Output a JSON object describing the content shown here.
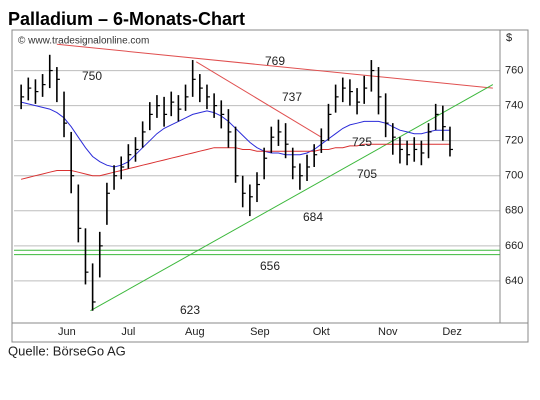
{
  "chart_data": {
    "type": "ohlc",
    "title": "Palladium – 6-Monats-Chart",
    "watermark": "© www.tradesignalonline.com",
    "y_label": "$",
    "source": "Quelle: BörseGo AG",
    "xlim": [
      -1,
      67
    ],
    "xticks": [
      {
        "value": 6.4,
        "label": "Jun"
      },
      {
        "value": 15,
        "label": "Jul"
      },
      {
        "value": 24.3,
        "label": "Aug"
      },
      {
        "value": 33.4,
        "label": "Sep"
      },
      {
        "value": 42,
        "label": "Okt"
      },
      {
        "value": 51.3,
        "label": "Nov"
      },
      {
        "value": 60.3,
        "label": "Dez"
      }
    ],
    "ylim": [
      616,
      782
    ],
    "yticks": [
      640,
      660,
      680,
      700,
      720,
      740,
      760
    ],
    "grid": true,
    "color": "#000000",
    "high": [
      752,
      756,
      755,
      758,
      769,
      762,
      748,
      725,
      695,
      670,
      650,
      668,
      696,
      706,
      711,
      718,
      722,
      731,
      742,
      746,
      745,
      748,
      746,
      752,
      766,
      758,
      752,
      747,
      743,
      738,
      728,
      700,
      695,
      702,
      716,
      728,
      732,
      730,
      716,
      707,
      712,
      718,
      727,
      741,
      752,
      756,
      755,
      750,
      757,
      766,
      762,
      747,
      730,
      722,
      720,
      722,
      720,
      730,
      741,
      740,
      728
    ],
    "low": [
      738,
      743,
      741,
      745,
      750,
      742,
      722,
      690,
      662,
      638,
      623,
      642,
      672,
      692,
      698,
      704,
      708,
      716,
      726,
      733,
      728,
      734,
      731,
      737,
      745,
      742,
      738,
      733,
      727,
      716,
      696,
      682,
      677,
      685,
      698,
      713,
      717,
      710,
      698,
      692,
      697,
      705,
      713,
      720,
      736,
      742,
      740,
      735,
      741,
      748,
      735,
      722,
      712,
      707,
      706,
      708,
      706,
      710,
      726,
      720,
      711
    ],
    "close": [
      745,
      750,
      748,
      752,
      760,
      755,
      730,
      700,
      670,
      645,
      628,
      660,
      690,
      700,
      705,
      712,
      715,
      725,
      735,
      740,
      735,
      742,
      738,
      745,
      755,
      750,
      745,
      740,
      735,
      725,
      700,
      690,
      688,
      695,
      710,
      722,
      725,
      718,
      705,
      700,
      705,
      712,
      720,
      735,
      745,
      750,
      748,
      742,
      750,
      760,
      745,
      730,
      722,
      715,
      712,
      715,
      713,
      725,
      735,
      728,
      715
    ],
    "series": [
      {
        "color": "#2b2bd9",
        "values": [
          742,
          741,
          740,
          739,
          738,
          736,
          733,
          728,
          722,
          716,
          711,
          708,
          706,
          705,
          706,
          708,
          712,
          716,
          720,
          724,
          727,
          729,
          731,
          733,
          735,
          736,
          737,
          736,
          734,
          731,
          727,
          723,
          719,
          716,
          714,
          713,
          713,
          712,
          712,
          712,
          713,
          715,
          718,
          721,
          724,
          727,
          729,
          730,
          731,
          731,
          731,
          730,
          728,
          726,
          725,
          724,
          724,
          725,
          726,
          726,
          726
        ]
      },
      {
        "color": "#d93030",
        "values": [
          698,
          699,
          700,
          701,
          702,
          703,
          703,
          703,
          702,
          701,
          700,
          700,
          701,
          702,
          703,
          704,
          705,
          706,
          707,
          708,
          709,
          710,
          711,
          712,
          713,
          714,
          715,
          716,
          716,
          716,
          716,
          715,
          715,
          714,
          714,
          714,
          714,
          714,
          714,
          714,
          714,
          714,
          715,
          715,
          716,
          716,
          717,
          717,
          718,
          718,
          718,
          718,
          718,
          718,
          718,
          718,
          718,
          718,
          718,
          718,
          718
        ]
      }
    ],
    "lines": [
      {
        "color": "#e05050",
        "points": [
          [
            5,
            775
          ],
          [
            66,
            750
          ]
        ]
      },
      {
        "color": "#e05050",
        "points": [
          [
            24.5,
            765
          ],
          [
            42,
            722
          ]
        ]
      },
      {
        "color": "#3cb83c",
        "points": [
          [
            9.7,
            623
          ],
          [
            66,
            752
          ]
        ]
      },
      {
        "color": "#3cb83c",
        "points": [
          [
            -1,
            655
          ],
          [
            67,
            655
          ]
        ]
      },
      {
        "color": "#3cb83c",
        "points": [
          [
            -1,
            657.5
          ],
          [
            67,
            657.5
          ]
        ]
      }
    ],
    "annotations": [
      "750",
      "769",
      "737",
      "725",
      "705",
      "684",
      "656",
      "623"
    ]
  }
}
